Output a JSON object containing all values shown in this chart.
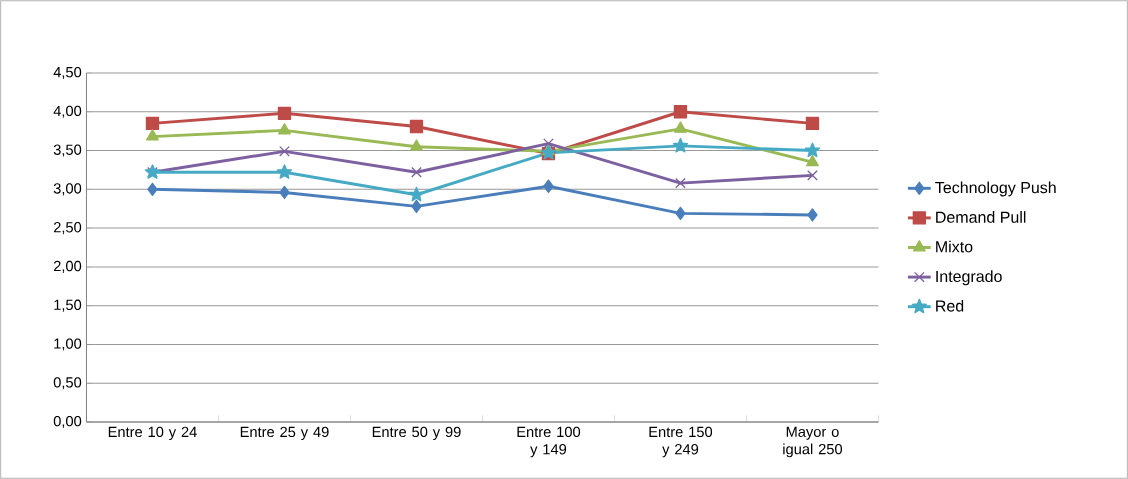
{
  "chart_data": {
    "type": "line",
    "categories": [
      "Entre 10 y 24",
      "Entre 25 y 49",
      "Entre 50 y 99",
      "Entre 100 y 149",
      "Entre 150 y 249",
      "Mayor o igual 250"
    ],
    "series": [
      {
        "name": "Technology Push",
        "color": "#4a7ebb",
        "marker": "diamond",
        "values": [
          3.0,
          2.96,
          2.78,
          3.04,
          2.69,
          2.67
        ]
      },
      {
        "name": "Demand Pull",
        "color": "#be4b48",
        "marker": "square",
        "values": [
          3.85,
          3.98,
          3.81,
          3.46,
          4.0,
          3.85
        ]
      },
      {
        "name": "Mixto",
        "color": "#98b954",
        "marker": "triangle",
        "values": [
          3.68,
          3.76,
          3.55,
          3.49,
          3.78,
          3.35
        ]
      },
      {
        "name": "Integrado",
        "color": "#7d60a0",
        "marker": "cross",
        "values": [
          3.22,
          3.49,
          3.22,
          3.59,
          3.08,
          3.18
        ]
      },
      {
        "name": "Red",
        "color": "#46aac5",
        "marker": "star",
        "values": [
          3.22,
          3.22,
          2.93,
          3.47,
          3.56,
          3.5
        ]
      }
    ],
    "ylim": [
      0,
      4.5
    ],
    "yticks": [
      {
        "value": 0,
        "label": "0,00"
      },
      {
        "value": 0.5,
        "label": "0,50"
      },
      {
        "value": 1,
        "label": "1,00"
      },
      {
        "value": 1.5,
        "label": "1,50"
      },
      {
        "value": 2,
        "label": "2,00"
      },
      {
        "value": 2.5,
        "label": "2,50"
      },
      {
        "value": 3,
        "label": "3,00"
      },
      {
        "value": 3.5,
        "label": "3,50"
      },
      {
        "value": 4,
        "label": "4,00"
      },
      {
        "value": 4.5,
        "label": "4,50"
      }
    ],
    "grid": "y",
    "legend": "right",
    "line_style": "solid"
  }
}
